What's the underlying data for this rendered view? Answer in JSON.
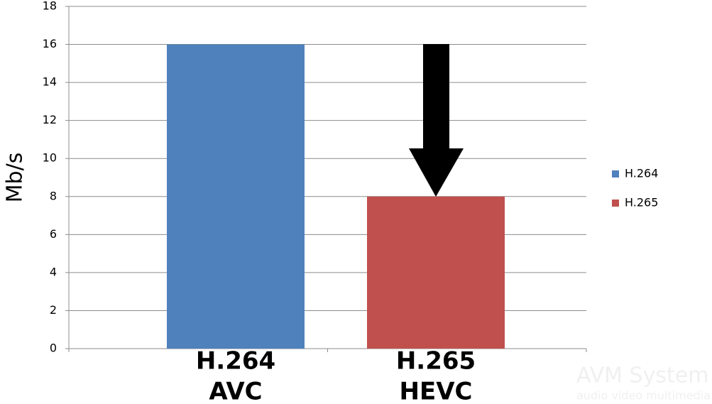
{
  "chart_data": {
    "type": "bar",
    "y_label": "Mb/s",
    "categories": [
      "H.264",
      "H.265"
    ],
    "category_sublabels": [
      "AVC",
      "HEVC"
    ],
    "series": [
      {
        "name": "H.264",
        "color": "#4f81bd",
        "values": [
          16,
          null
        ]
      },
      {
        "name": "H.265",
        "color": "#c0504d",
        "values": [
          null,
          8
        ]
      }
    ],
    "ylim": [
      0,
      18
    ],
    "yticks": [
      0,
      2,
      4,
      6,
      8,
      10,
      12,
      14,
      16,
      18
    ],
    "grid": true,
    "legend": "right",
    "watermark": [
      "AVM System",
      "audio video multimedia"
    ]
  }
}
